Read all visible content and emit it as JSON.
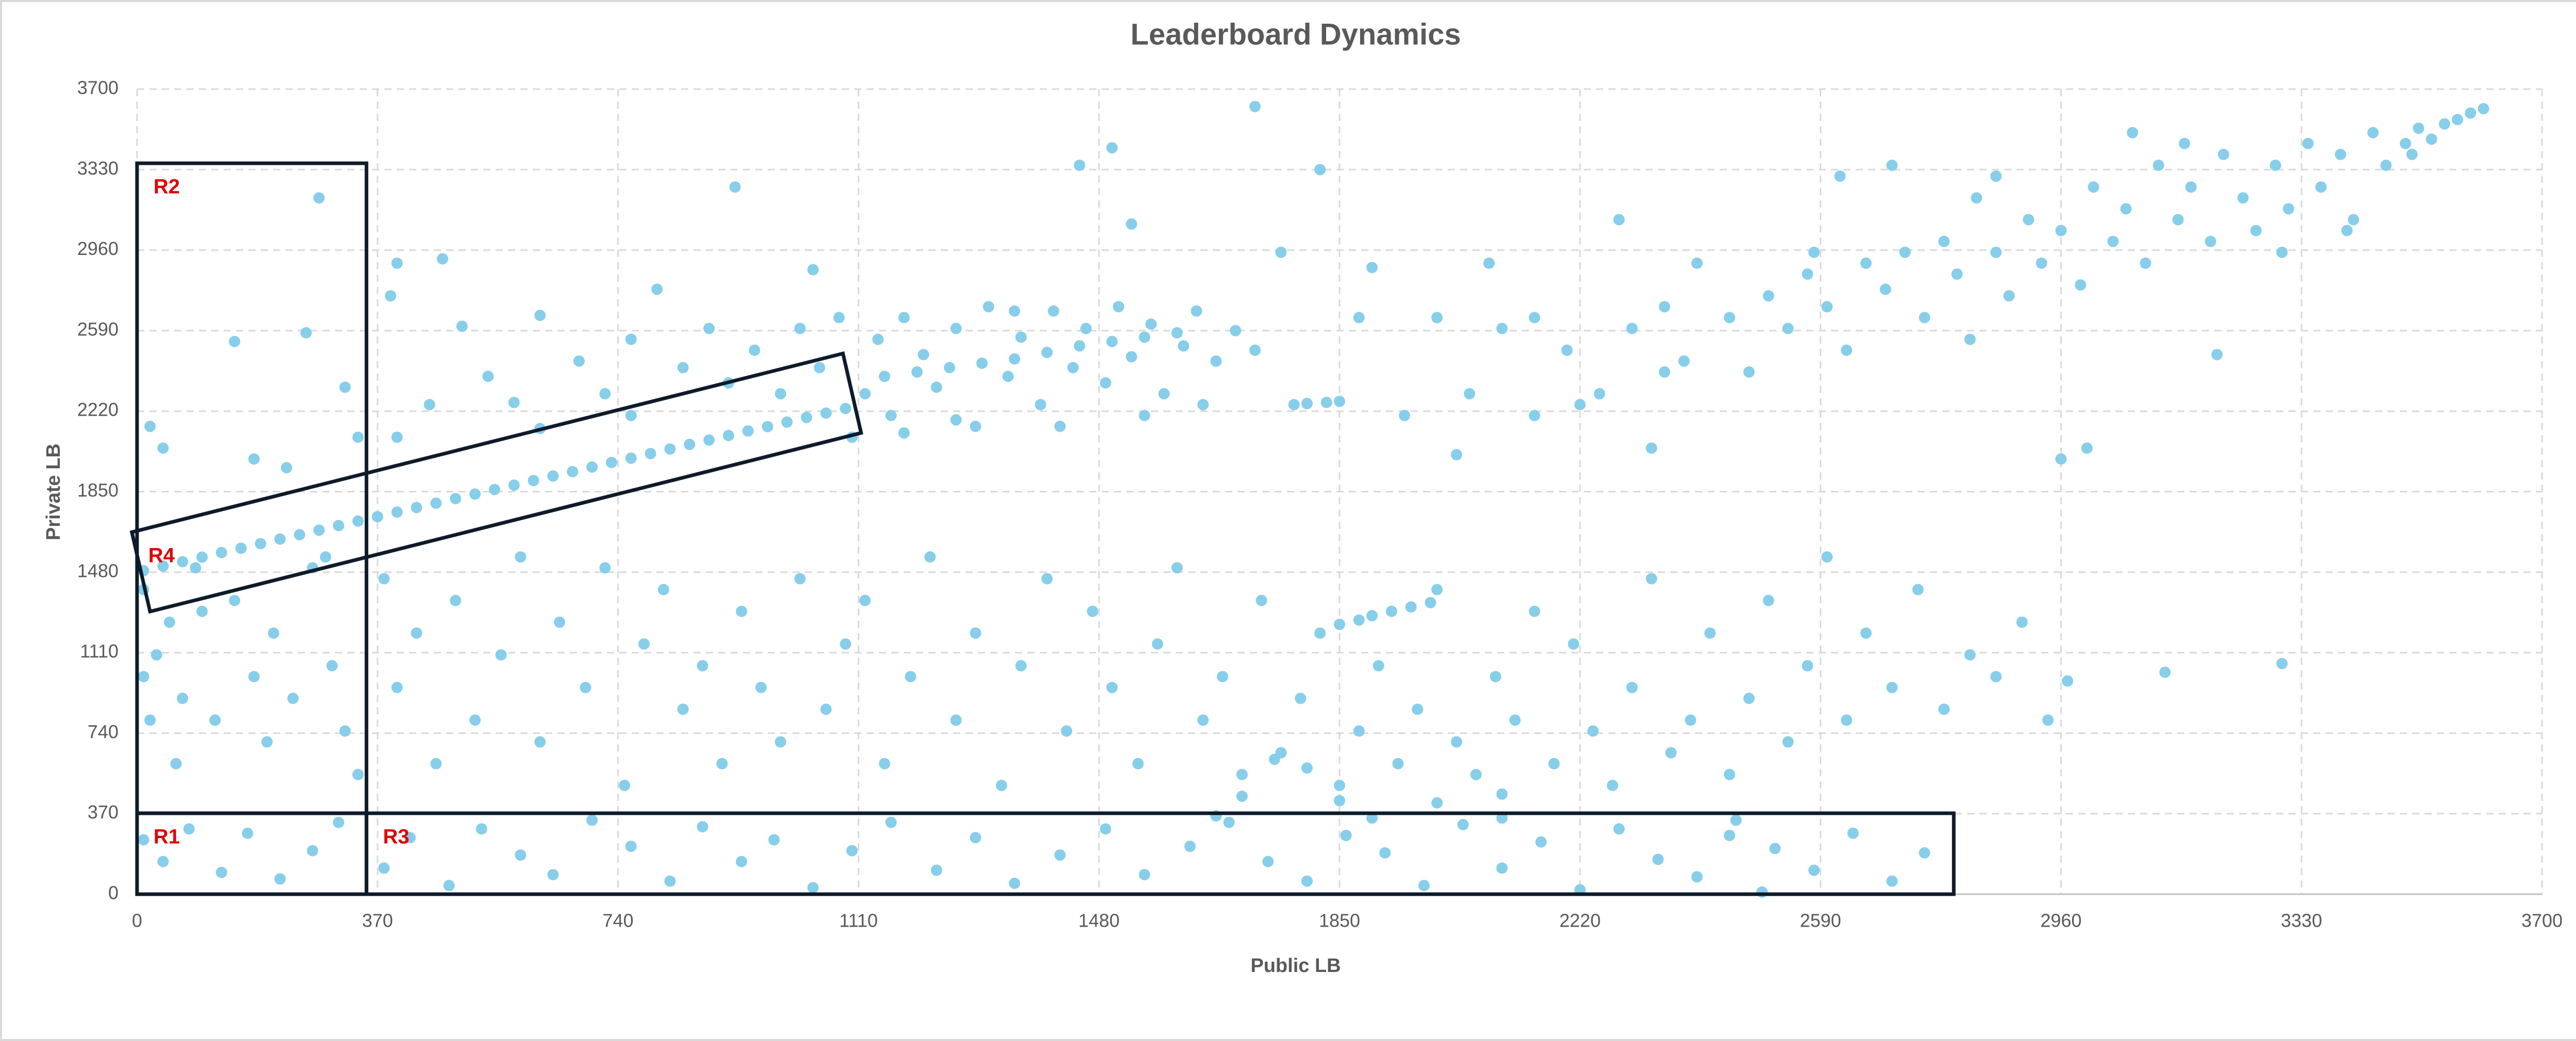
{
  "chart_data": {
    "type": "scatter",
    "title": "Leaderboard Dynamics",
    "x_label": "Public LB",
    "y_label": "Private LB",
    "color": "#87ceeb",
    "grid": true,
    "xlim": [
      0,
      3700
    ],
    "ylim": [
      0,
      3700
    ],
    "xticks": [
      0,
      370,
      740,
      1110,
      1480,
      1850,
      2220,
      2590,
      2960,
      3330,
      3700
    ],
    "yticks": [
      0,
      370,
      740,
      1110,
      1480,
      1850,
      2220,
      2590,
      2960,
      3330,
      3700
    ],
    "annotations": [
      {
        "text": "R1",
        "points": [
          [
            0,
            0
          ],
          [
            353,
            0
          ],
          [
            353,
            372
          ],
          [
            0,
            372
          ]
        ]
      },
      {
        "text": "R2",
        "points": [
          [
            0,
            372
          ],
          [
            353,
            372
          ],
          [
            353,
            3359
          ],
          [
            0,
            3359
          ]
        ]
      },
      {
        "text": "R3",
        "points": [
          [
            353,
            0
          ],
          [
            2795,
            0
          ],
          [
            2795,
            372
          ],
          [
            353,
            372
          ]
        ]
      },
      {
        "text": "R4",
        "points": [
          [
            20,
            1299
          ],
          [
            1114,
            2120
          ],
          [
            1086,
            2485
          ],
          [
            -8,
            1664
          ]
        ]
      }
    ],
    "x": [
      10,
      40,
      70,
      100,
      130,
      160,
      190,
      220,
      250,
      280,
      310,
      340,
      370,
      400,
      430,
      460,
      490,
      520,
      550,
      580,
      610,
      640,
      670,
      700,
      730,
      760,
      790,
      820,
      850,
      880,
      910,
      940,
      970,
      1000,
      1030,
      1060,
      1090,
      1150,
      1200,
      1250,
      1300,
      1350,
      1400,
      1450,
      1500,
      1550,
      1600,
      1780,
      1800,
      1830,
      1850,
      1900,
      1930,
      1960,
      1990,
      1880,
      1850,
      1120,
      1140,
      1160,
      1180,
      1210,
      1230,
      1260,
      1290,
      1310,
      1340,
      1360,
      1390,
      1410,
      1440,
      1460,
      1490,
      1510,
      1530,
      1560,
      1580,
      1610,
      1630,
      1660,
      1690,
      1720,
      1180,
      1260,
      1420,
      1550,
      1640,
      2450,
      2480,
      2510,
      2540,
      2570,
      2600,
      2630,
      2660,
      2690,
      2720,
      2750,
      2780,
      2800,
      2830,
      2860,
      2880,
      2910,
      2930,
      2960,
      2990,
      3010,
      3040,
      3060,
      3090,
      3110,
      3140,
      3160,
      3190,
      3210,
      3240,
      3260,
      3290,
      3310,
      3340,
      3360,
      3390,
      3410,
      3440,
      3460,
      3490,
      3510,
      3530,
      3550,
      3570,
      3590,
      3610,
      2350,
      2300,
      2200,
      2400,
      2250,
      2380,
      3000,
      2960,
      3200,
      2700,
      2620,
      2860,
      3070,
      3150,
      3300,
      3400,
      2820,
      2580,
      3500,
      1720,
      1760,
      1820,
      1900,
      2000,
      2080,
      2150,
      2220,
      2280,
      2350,
      1950,
      2050,
      2100,
      1450,
      1500,
      1530,
      920,
      280,
      1040,
      1350,
      2150,
      1880,
      2030,
      2330,
      20,
      40,
      150,
      180,
      230,
      260,
      320,
      340,
      400,
      390,
      470,
      500,
      540,
      580,
      620,
      680,
      720,
      760,
      800,
      840,
      880,
      910,
      950,
      990,
      1020,
      1050,
      1080,
      1100,
      400,
      450,
      620,
      760,
      10,
      30,
      50,
      70,
      90,
      120,
      150,
      180,
      210,
      240,
      270,
      300,
      320,
      340,
      10,
      20,
      60,
      100,
      200,
      290,
      380,
      400,
      430,
      460,
      490,
      520,
      560,
      590,
      620,
      650,
      690,
      720,
      750,
      780,
      810,
      840,
      870,
      900,
      930,
      960,
      990,
      1020,
      1060,
      1090,
      1120,
      1150,
      1190,
      1220,
      1260,
      1290,
      1330,
      1360,
      1400,
      1430,
      1470,
      1500,
      1540,
      1570,
      1600,
      1640,
      1670,
      1700,
      1730,
      1760,
      1790,
      1820,
      1850,
      1880,
      1910,
      1940,
      1970,
      2000,
      2030,
      2060,
      2090,
      2120,
      2150,
      2180,
      2210,
      2240,
      2270,
      2300,
      2330,
      2360,
      2390,
      2420,
      2450,
      2480,
      2510,
      2540,
      2570,
      2600,
      2630,
      2660,
      2700,
      2740,
      2780,
      2820,
      2860,
      2900,
      2940,
      2970,
      3120,
      3300,
      1700,
      1850,
      2000,
      2100,
      1750,
      1800,
      10,
      40,
      80,
      130,
      170,
      220,
      270,
      310,
      380,
      420,
      480,
      530,
      590,
      640,
      700,
      760,
      820,
      870,
      930,
      980,
      1040,
      1100,
      1160,
      1230,
      1290,
      1350,
      1420,
      1490,
      1550,
      1620,
      1680,
      1740,
      1800,
      1860,
      1920,
      1980,
      2040,
      2100,
      2160,
      2220,
      2280,
      2340,
      2400,
      2460,
      2520,
      2580,
      2640,
      2700,
      2750,
      1660,
      1900,
      2450,
      2500,
      2100
    ],
    "values": [
      1487,
      1508,
      1528,
      1549,
      1570,
      1590,
      1611,
      1632,
      1652,
      1673,
      1694,
      1715,
      1735,
      1756,
      1777,
      1797,
      1818,
      1839,
      1860,
      1880,
      1901,
      1922,
      1942,
      1963,
      1984,
      2004,
      2025,
      2046,
      2067,
      2087,
      2108,
      2129,
      2149,
      2170,
      2191,
      2211,
      2232,
      2380,
      2400,
      2420,
      2440,
      2460,
      2490,
      2520,
      2540,
      2560,
      2580,
      2250,
      2255,
      2260,
      2265,
      1280,
      1300,
      1320,
      1340,
      1260,
      1240,
      2300,
      2550,
      2200,
      2650,
      2480,
      2330,
      2600,
      2150,
      2700,
      2380,
      2560,
      2250,
      2680,
      2420,
      2600,
      2350,
      2700,
      2470,
      2620,
      2300,
      2520,
      2680,
      2450,
      2590,
      2500,
      2120,
      2180,
      2150,
      2200,
      2250,
      2650,
      2400,
      2750,
      2600,
      2850,
      2700,
      2500,
      2900,
      2780,
      2950,
      2650,
      3000,
      2850,
      3200,
      2950,
      2750,
      3100,
      2900,
      3050,
      2800,
      3250,
      3000,
      3150,
      2900,
      3350,
      3100,
      3250,
      3000,
      3400,
      3200,
      3050,
      3350,
      3150,
      3450,
      3250,
      3400,
      3100,
      3500,
      3350,
      3450,
      3520,
      3470,
      3540,
      3560,
      3590,
      3610,
      2700,
      2600,
      2500,
      2900,
      2300,
      2450,
      2050,
      2000,
      2480,
      3350,
      3300,
      3300,
      3500,
      3450,
      2950,
      3050,
      2550,
      2950,
      3400,
      3620,
      2950,
      3330,
      2880,
      2650,
      2900,
      2650,
      2250,
      3100,
      2400,
      2200,
      2300,
      2600,
      3350,
      3430,
      3080,
      3250,
      3200,
      2870,
      2680,
      2200,
      2650,
      2020,
      2050,
      2150,
      2050,
      2540,
      2000,
      1960,
      2580,
      2330,
      2100,
      2900,
      2750,
      2920,
      2610,
      2380,
      2260,
      2660,
      2450,
      2300,
      2550,
      2780,
      2420,
      2600,
      2350,
      2500,
      2300,
      2600,
      2420,
      2650,
      2100,
      2100,
      2250,
      2140,
      2200,
      1400,
      1100,
      1250,
      900,
      1500,
      800,
      1350,
      1000,
      1200,
      900,
      1500,
      1050,
      750,
      550,
      1000,
      800,
      600,
      1300,
      700,
      1550,
      1450,
      950,
      1200,
      600,
      1350,
      800,
      1100,
      1550,
      700,
      1250,
      950,
      1500,
      500,
      1150,
      1400,
      850,
      1050,
      600,
      1300,
      950,
      700,
      1450,
      850,
      1150,
      1350,
      600,
      1000,
      1550,
      800,
      1200,
      500,
      1050,
      1450,
      750,
      1300,
      950,
      600,
      1150,
      1500,
      800,
      1000,
      550,
      1350,
      650,
      900,
      1200,
      500,
      750,
      1050,
      600,
      850,
      1400,
      700,
      550,
      1000,
      800,
      1300,
      600,
      1150,
      750,
      500,
      950,
      1450,
      650,
      800,
      1200,
      550,
      900,
      1350,
      700,
      1050,
      1550,
      800,
      1200,
      950,
      1400,
      850,
      1100,
      1000,
      1250,
      800,
      980,
      1020,
      1060,
      450,
      430,
      420,
      460,
      620,
      580,
      250,
      150,
      300,
      100,
      280,
      70,
      200,
      330,
      120,
      260,
      40,
      300,
      180,
      90,
      340,
      220,
      60,
      310,
      150,
      250,
      30,
      200,
      330,
      110,
      260,
      50,
      180,
      300,
      90,
      220,
      330,
      150,
      60,
      270,
      190,
      40,
      320,
      120,
      240,
      20,
      300,
      160,
      80,
      340,
      210,
      110,
      280,
      60,
      190,
      360,
      350,
      270,
      10,
      350
    ]
  }
}
